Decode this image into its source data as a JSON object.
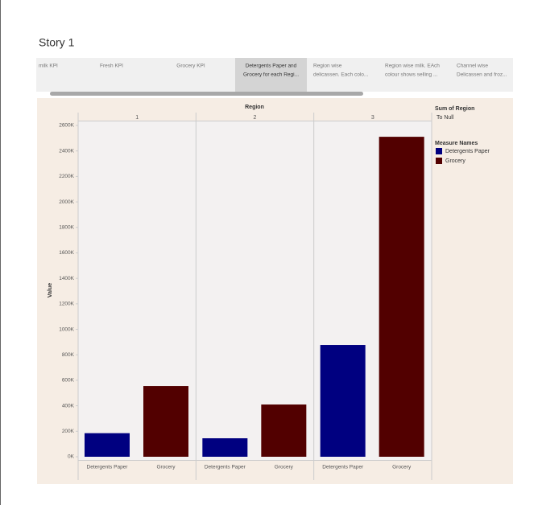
{
  "story": {
    "title": "Story 1",
    "tabs": [
      {
        "lines": [
          "milk KPI"
        ]
      },
      {
        "lines": [
          "Fresh KPI"
        ]
      },
      {
        "lines": [
          "Grocery KPI"
        ]
      },
      {
        "lines": [
          "Detergents Paper and",
          "Grocery for each Regi..."
        ],
        "selected": true
      },
      {
        "lines": [
          "Region wise",
          "delicassen. Each colo..."
        ]
      },
      {
        "lines": [
          "Region wise milk. EAch",
          "colour shows selling ..."
        ]
      },
      {
        "lines": [
          "Channel wise",
          "Delicassen and froz..."
        ]
      }
    ]
  },
  "chart_data": {
    "type": "bar",
    "column_header": "Region",
    "categories": [
      "1",
      "2",
      "3"
    ],
    "y_label": "Value",
    "series": [
      {
        "name": "Detergents Paper",
        "color": "#000080",
        "values": [
          185000,
          145000,
          877000
        ]
      },
      {
        "name": "Grocery",
        "color": "#520000",
        "values": [
          555000,
          410000,
          2511000
        ]
      }
    ],
    "ylim": [
      0,
      2600000
    ],
    "yticks": [
      {
        "value": 0,
        "label": "0K"
      },
      {
        "value": 200000,
        "label": "200K"
      },
      {
        "value": 400000,
        "label": "400K"
      },
      {
        "value": 600000,
        "label": "600K"
      },
      {
        "value": 800000,
        "label": "800K"
      },
      {
        "value": 1000000,
        "label": "1000K"
      },
      {
        "value": 1200000,
        "label": "1200K"
      },
      {
        "value": 1400000,
        "label": "1400K"
      },
      {
        "value": 1600000,
        "label": "1600K"
      },
      {
        "value": 1800000,
        "label": "1800K"
      },
      {
        "value": 2000000,
        "label": "2000K"
      },
      {
        "value": 2200000,
        "label": "2200K"
      },
      {
        "value": 2400000,
        "label": "2400K"
      },
      {
        "value": 2600000,
        "label": "2600K"
      }
    ],
    "legend": {
      "size_title": "Sum of Region",
      "size_value": "To Null",
      "color_title": "Measure Names"
    }
  }
}
